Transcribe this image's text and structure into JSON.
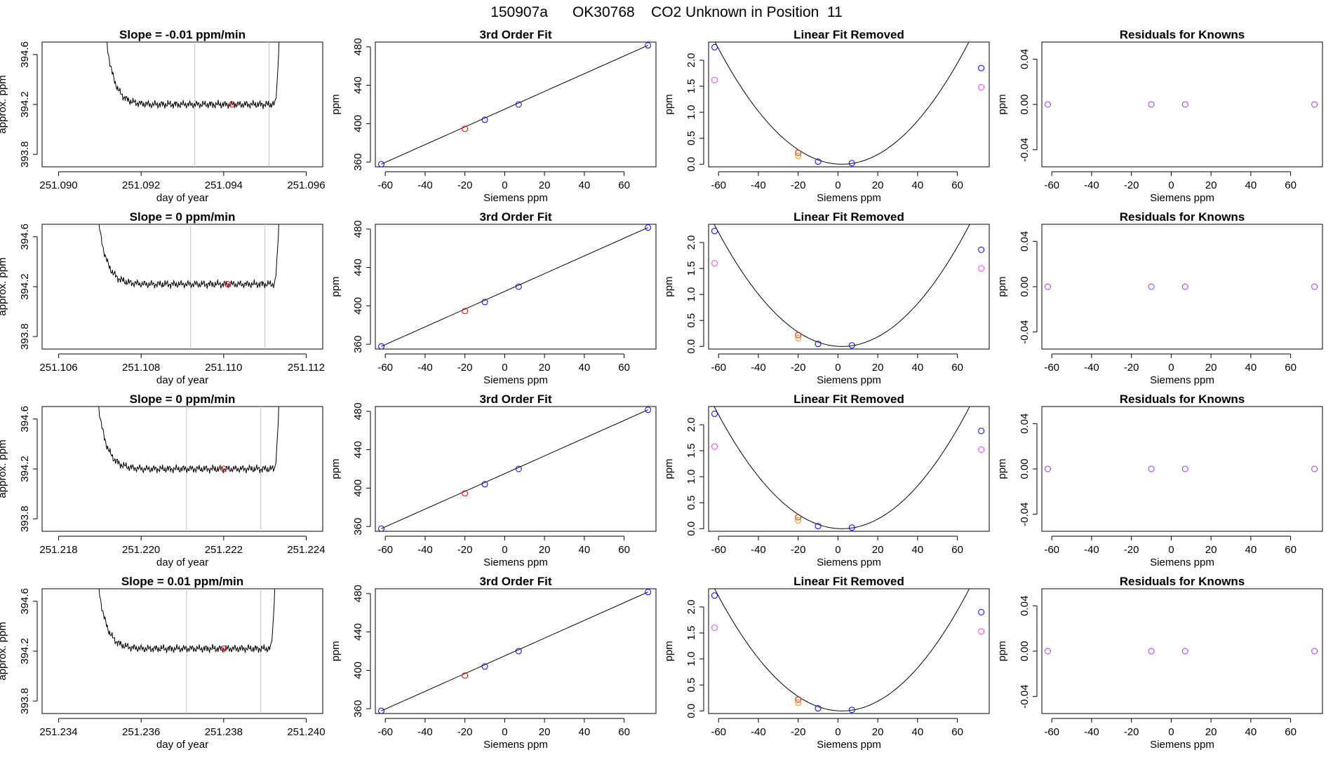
{
  "main_title": "150907a      OK30768    CO2 Unknown in Position  11",
  "colors": {
    "blue": "#0000ff",
    "red": "#ff0000",
    "orange": "#ff8c00",
    "magenta": "#ee44ee",
    "purple": "#9933ff",
    "gray": "#c0c0c0"
  },
  "chart_data": [
    {
      "type": "line",
      "row": 1,
      "title": "Slope =  -0.01  ppm/min",
      "xlabel": "day of year",
      "ylabel": "approx. ppm",
      "xlim": [
        251.0896,
        251.0964
      ],
      "ylim": [
        393.7,
        394.7
      ],
      "xticks": [
        251.09,
        251.092,
        251.094,
        251.096
      ],
      "xtick_labels": [
        "251.090",
        "251.092",
        "251.094",
        "251.096"
      ],
      "yticks": [
        393.8,
        394.2,
        394.6
      ],
      "ytick_labels": [
        "393.8",
        "394.2",
        "394.6"
      ],
      "x_start": 251.0911,
      "x_end": 251.0954,
      "trace_level": 394.2,
      "vlines": [
        251.0933,
        251.0951
      ],
      "marker": {
        "x": 251.0942,
        "y": 394.2,
        "color": "red"
      }
    },
    {
      "type": "line",
      "row": 1,
      "title": "3rd Order Fit",
      "xlabel": "Siemens ppm",
      "ylabel": "ppm",
      "xlim": [
        -65,
        76
      ],
      "ylim": [
        355,
        485
      ],
      "xticks": [
        -60,
        -40,
        -20,
        0,
        20,
        40,
        60
      ],
      "xtick_labels": [
        "-60",
        "-40",
        "-20",
        "0",
        "20",
        "40",
        "60"
      ],
      "yticks": [
        360,
        400,
        440,
        480
      ],
      "ytick_labels": [
        "360",
        "400",
        "440",
        "480"
      ],
      "curve": {
        "x": [
          -62,
          72
        ],
        "y": [
          357.8,
          481.6
        ]
      },
      "points": [
        {
          "x": -62,
          "y": 357.8,
          "color": "blue"
        },
        {
          "x": -10,
          "y": 404.0,
          "color": "blue"
        },
        {
          "x": 7,
          "y": 420.0,
          "color": "blue"
        },
        {
          "x": 72,
          "y": 481.6,
          "color": "blue"
        },
        {
          "x": -20,
          "y": 394.6,
          "color": "red"
        }
      ]
    },
    {
      "type": "scatter",
      "row": 1,
      "title": "Linear Fit Removed",
      "xlabel": "Siemens ppm",
      "ylabel": "ppm",
      "xlim": [
        -65,
        76
      ],
      "ylim": [
        -0.05,
        2.35
      ],
      "xticks": [
        -60,
        -40,
        -20,
        0,
        20,
        40,
        60
      ],
      "xtick_labels": [
        "-60",
        "-40",
        "-20",
        "0",
        "20",
        "40",
        "60"
      ],
      "yticks": [
        0.0,
        0.5,
        1.0,
        1.5,
        2.0
      ],
      "ytick_labels": [
        "0.0",
        "0.5",
        "1.0",
        "1.5",
        "2.0"
      ],
      "curve": {
        "quad": 0.000578,
        "vertex": 2
      },
      "points": [
        {
          "x": -62,
          "y": 2.25,
          "color": "blue"
        },
        {
          "x": -10,
          "y": 0.05,
          "color": "blue"
        },
        {
          "x": 7,
          "y": 0.02,
          "color": "blue"
        },
        {
          "x": 72,
          "y": 1.85,
          "color": "blue"
        },
        {
          "x": -62,
          "y": 1.62,
          "color": "magenta"
        },
        {
          "x": 72,
          "y": 1.48,
          "color": "magenta"
        },
        {
          "x": -20,
          "y": 0.22,
          "color": "red"
        },
        {
          "x": -20,
          "y": 0.16,
          "color": "orange"
        }
      ]
    },
    {
      "type": "scatter",
      "row": 1,
      "title": "Residuals for Knowns",
      "xlabel": "Siemens ppm",
      "ylabel": "ppm",
      "xlim": [
        -65,
        76
      ],
      "ylim": [
        -0.055,
        0.055
      ],
      "xticks": [
        -60,
        -40,
        -20,
        0,
        20,
        40,
        60
      ],
      "xtick_labels": [
        "-60",
        "-40",
        "-20",
        "0",
        "20",
        "40",
        "60"
      ],
      "yticks": [
        -0.04,
        0.0,
        0.04
      ],
      "ytick_labels": [
        "-0.04",
        "0.00",
        "0.04"
      ],
      "points": [
        {
          "x": -62,
          "y": 0.0,
          "color": "purple"
        },
        {
          "x": -10,
          "y": 0.0,
          "color": "purple"
        },
        {
          "x": 7,
          "y": 0.0,
          "color": "purple"
        },
        {
          "x": 72,
          "y": 0.0,
          "color": "purple"
        }
      ]
    },
    {
      "type": "line",
      "row": 2,
      "title": "Slope =  0  ppm/min",
      "xlabel": "day of year",
      "ylabel": "approx. ppm",
      "xlim": [
        251.1056,
        251.1124
      ],
      "ylim": [
        393.7,
        394.7
      ],
      "xticks": [
        251.106,
        251.108,
        251.11,
        251.112
      ],
      "xtick_labels": [
        "251.106",
        "251.108",
        "251.110",
        "251.112"
      ],
      "yticks": [
        393.8,
        394.2,
        394.6
      ],
      "ytick_labels": [
        "393.8",
        "394.2",
        "394.6"
      ],
      "x_start": 251.1069,
      "x_end": 251.1114,
      "trace_level": 394.22,
      "vlines": [
        251.1092,
        251.111
      ],
      "marker": {
        "x": 251.1101,
        "y": 394.22,
        "color": "red"
      }
    },
    {
      "type": "line",
      "row": 2,
      "title": "3rd Order Fit",
      "xlabel": "Siemens ppm",
      "ylabel": "ppm",
      "xlim": [
        -65,
        76
      ],
      "ylim": [
        355,
        485
      ],
      "xticks": [
        -60,
        -40,
        -20,
        0,
        20,
        40,
        60
      ],
      "xtick_labels": [
        "-60",
        "-40",
        "-20",
        "0",
        "20",
        "40",
        "60"
      ],
      "yticks": [
        360,
        400,
        440,
        480
      ],
      "ytick_labels": [
        "360",
        "400",
        "440",
        "480"
      ],
      "curve": {
        "x": [
          -62,
          72
        ],
        "y": [
          357.8,
          481.6
        ]
      },
      "points": [
        {
          "x": -62,
          "y": 357.8,
          "color": "blue"
        },
        {
          "x": -10,
          "y": 404.0,
          "color": "blue"
        },
        {
          "x": 7,
          "y": 420.0,
          "color": "blue"
        },
        {
          "x": 72,
          "y": 481.6,
          "color": "blue"
        },
        {
          "x": -20,
          "y": 394.6,
          "color": "red"
        }
      ]
    },
    {
      "type": "scatter",
      "row": 2,
      "title": "Linear Fit Removed",
      "xlabel": "Siemens ppm",
      "ylabel": "ppm",
      "xlim": [
        -65,
        76
      ],
      "ylim": [
        -0.05,
        2.35
      ],
      "xticks": [
        -60,
        -40,
        -20,
        0,
        20,
        40,
        60
      ],
      "xtick_labels": [
        "-60",
        "-40",
        "-20",
        "0",
        "20",
        "40",
        "60"
      ],
      "yticks": [
        0.0,
        0.5,
        1.0,
        1.5,
        2.0
      ],
      "ytick_labels": [
        "0.0",
        "0.5",
        "1.0",
        "1.5",
        "2.0"
      ],
      "curve": {
        "quad": 0.00057,
        "vertex": 2
      },
      "points": [
        {
          "x": -62,
          "y": 2.22,
          "color": "blue"
        },
        {
          "x": -10,
          "y": 0.05,
          "color": "blue"
        },
        {
          "x": 7,
          "y": 0.02,
          "color": "blue"
        },
        {
          "x": 72,
          "y": 1.86,
          "color": "blue"
        },
        {
          "x": -62,
          "y": 1.6,
          "color": "magenta"
        },
        {
          "x": 72,
          "y": 1.5,
          "color": "magenta"
        },
        {
          "x": -20,
          "y": 0.22,
          "color": "red"
        },
        {
          "x": -20,
          "y": 0.16,
          "color": "orange"
        }
      ]
    },
    {
      "type": "scatter",
      "row": 2,
      "title": "Residuals for Knowns",
      "xlabel": "Siemens ppm",
      "ylabel": "ppm",
      "xlim": [
        -65,
        76
      ],
      "ylim": [
        -0.055,
        0.055
      ],
      "xticks": [
        -60,
        -40,
        -20,
        0,
        20,
        40,
        60
      ],
      "xtick_labels": [
        "-60",
        "-40",
        "-20",
        "0",
        "20",
        "40",
        "60"
      ],
      "yticks": [
        -0.04,
        0.0,
        0.04
      ],
      "ytick_labels": [
        "-0.04",
        "0.00",
        "0.04"
      ],
      "points": [
        {
          "x": -62,
          "y": 0.0,
          "color": "purple"
        },
        {
          "x": -10,
          "y": 0.0,
          "color": "purple"
        },
        {
          "x": 7,
          "y": 0.0,
          "color": "purple"
        },
        {
          "x": 72,
          "y": 0.0,
          "color": "purple"
        }
      ]
    },
    {
      "type": "line",
      "row": 3,
      "title": "Slope =  0  ppm/min",
      "xlabel": "day of year",
      "ylabel": "approx. ppm",
      "xlim": [
        251.2176,
        251.2244
      ],
      "ylim": [
        393.7,
        394.7
      ],
      "xticks": [
        251.218,
        251.22,
        251.222,
        251.224
      ],
      "xtick_labels": [
        "251.218",
        "251.220",
        "251.222",
        "251.224"
      ],
      "yticks": [
        393.8,
        394.2,
        394.6
      ],
      "ytick_labels": [
        "393.8",
        "394.2",
        "394.6"
      ],
      "x_start": 251.2189,
      "x_end": 251.2234,
      "trace_level": 394.2,
      "vlines": [
        251.2211,
        251.2229
      ],
      "marker": {
        "x": 251.222,
        "y": 394.2,
        "color": "red"
      }
    },
    {
      "type": "line",
      "row": 3,
      "title": "3rd Order Fit",
      "xlabel": "Siemens ppm",
      "ylabel": "ppm",
      "xlim": [
        -65,
        76
      ],
      "ylim": [
        355,
        485
      ],
      "xticks": [
        -60,
        -40,
        -20,
        0,
        20,
        40,
        60
      ],
      "xtick_labels": [
        "-60",
        "-40",
        "-20",
        "0",
        "20",
        "40",
        "60"
      ],
      "yticks": [
        360,
        400,
        440,
        480
      ],
      "ytick_labels": [
        "360",
        "400",
        "440",
        "480"
      ],
      "curve": {
        "x": [
          -62,
          72
        ],
        "y": [
          357.8,
          481.6
        ]
      },
      "points": [
        {
          "x": -62,
          "y": 357.8,
          "color": "blue"
        },
        {
          "x": -10,
          "y": 404.0,
          "color": "blue"
        },
        {
          "x": 7,
          "y": 420.0,
          "color": "blue"
        },
        {
          "x": 72,
          "y": 481.6,
          "color": "blue"
        },
        {
          "x": -20,
          "y": 394.6,
          "color": "red"
        }
      ]
    },
    {
      "type": "scatter",
      "row": 3,
      "title": "Linear Fit Removed",
      "xlabel": "Siemens ppm",
      "ylabel": "ppm",
      "xlim": [
        -65,
        76
      ],
      "ylim": [
        -0.05,
        2.35
      ],
      "xticks": [
        -60,
        -40,
        -20,
        0,
        20,
        40,
        60
      ],
      "xtick_labels": [
        "-60",
        "-40",
        "-20",
        "0",
        "20",
        "40",
        "60"
      ],
      "yticks": [
        0.0,
        0.5,
        1.0,
        1.5,
        2.0
      ],
      "ytick_labels": [
        "0.0",
        "0.5",
        "1.0",
        "1.5",
        "2.0"
      ],
      "curve": {
        "quad": 0.00057,
        "vertex": 2
      },
      "points": [
        {
          "x": -62,
          "y": 2.21,
          "color": "blue"
        },
        {
          "x": -10,
          "y": 0.05,
          "color": "blue"
        },
        {
          "x": 7,
          "y": 0.02,
          "color": "blue"
        },
        {
          "x": 72,
          "y": 1.88,
          "color": "blue"
        },
        {
          "x": -62,
          "y": 1.58,
          "color": "magenta"
        },
        {
          "x": 72,
          "y": 1.52,
          "color": "magenta"
        },
        {
          "x": -20,
          "y": 0.22,
          "color": "red"
        },
        {
          "x": -20,
          "y": 0.16,
          "color": "orange"
        }
      ]
    },
    {
      "type": "scatter",
      "row": 3,
      "title": "Residuals for Knowns",
      "xlabel": "Siemens ppm",
      "ylabel": "ppm",
      "xlim": [
        -65,
        76
      ],
      "ylim": [
        -0.055,
        0.055
      ],
      "xticks": [
        -60,
        -40,
        -20,
        0,
        20,
        40,
        60
      ],
      "xtick_labels": [
        "-60",
        "-40",
        "-20",
        "0",
        "20",
        "40",
        "60"
      ],
      "yticks": [
        -0.04,
        0.0,
        0.04
      ],
      "ytick_labels": [
        "-0.04",
        "0.00",
        "0.04"
      ],
      "points": [
        {
          "x": -62,
          "y": 0.0,
          "color": "purple"
        },
        {
          "x": -10,
          "y": 0.0,
          "color": "purple"
        },
        {
          "x": 7,
          "y": 0.0,
          "color": "purple"
        },
        {
          "x": 72,
          "y": 0.0,
          "color": "purple"
        }
      ]
    },
    {
      "type": "line",
      "row": 4,
      "title": "Slope =  0.01  ppm/min",
      "xlabel": "day of year",
      "ylabel": "approx. ppm",
      "xlim": [
        251.2336,
        251.2404
      ],
      "ylim": [
        393.7,
        394.7
      ],
      "xticks": [
        251.234,
        251.236,
        251.238,
        251.24
      ],
      "xtick_labels": [
        "251.234",
        "251.236",
        "251.238",
        "251.240"
      ],
      "yticks": [
        393.8,
        394.2,
        394.6
      ],
      "ytick_labels": [
        "393.8",
        "394.2",
        "394.6"
      ],
      "x_start": 251.2349,
      "x_end": 251.2393,
      "trace_level": 394.22,
      "vlines": [
        251.2371,
        251.2389
      ],
      "marker": {
        "x": 251.238,
        "y": 394.22,
        "color": "red"
      }
    },
    {
      "type": "line",
      "row": 4,
      "title": "3rd Order Fit",
      "xlabel": "Siemens ppm",
      "ylabel": "ppm",
      "xlim": [
        -65,
        76
      ],
      "ylim": [
        355,
        485
      ],
      "xticks": [
        -60,
        -40,
        -20,
        0,
        20,
        40,
        60
      ],
      "xtick_labels": [
        "-60",
        "-40",
        "-20",
        "0",
        "20",
        "40",
        "60"
      ],
      "yticks": [
        360,
        400,
        440,
        480
      ],
      "ytick_labels": [
        "360",
        "400",
        "440",
        "480"
      ],
      "curve": {
        "x": [
          -62,
          72
        ],
        "y": [
          357.8,
          481.6
        ]
      },
      "points": [
        {
          "x": -62,
          "y": 357.8,
          "color": "blue"
        },
        {
          "x": -10,
          "y": 404.0,
          "color": "blue"
        },
        {
          "x": 7,
          "y": 420.0,
          "color": "blue"
        },
        {
          "x": 72,
          "y": 481.6,
          "color": "blue"
        },
        {
          "x": -20,
          "y": 394.6,
          "color": "red"
        }
      ]
    },
    {
      "type": "scatter",
      "row": 4,
      "title": "Linear Fit Removed",
      "xlabel": "Siemens ppm",
      "ylabel": "ppm",
      "xlim": [
        -65,
        76
      ],
      "ylim": [
        -0.05,
        2.35
      ],
      "xticks": [
        -60,
        -40,
        -20,
        0,
        20,
        40,
        60
      ],
      "xtick_labels": [
        "-60",
        "-40",
        "-20",
        "0",
        "20",
        "40",
        "60"
      ],
      "yticks": [
        0.0,
        0.5,
        1.0,
        1.5,
        2.0
      ],
      "ytick_labels": [
        "0.0",
        "0.5",
        "1.0",
        "1.5",
        "2.0"
      ],
      "curve": {
        "quad": 0.000574,
        "vertex": 2
      },
      "points": [
        {
          "x": -62,
          "y": 2.22,
          "color": "blue"
        },
        {
          "x": -10,
          "y": 0.05,
          "color": "blue"
        },
        {
          "x": 7,
          "y": 0.02,
          "color": "blue"
        },
        {
          "x": 72,
          "y": 1.9,
          "color": "blue"
        },
        {
          "x": -62,
          "y": 1.6,
          "color": "magenta"
        },
        {
          "x": 72,
          "y": 1.53,
          "color": "magenta"
        },
        {
          "x": -20,
          "y": 0.22,
          "color": "red"
        },
        {
          "x": -20,
          "y": 0.16,
          "color": "orange"
        }
      ]
    },
    {
      "type": "scatter",
      "row": 4,
      "title": "Residuals for Knowns",
      "xlabel": "Siemens ppm",
      "ylabel": "ppm",
      "xlim": [
        -65,
        76
      ],
      "ylim": [
        -0.055,
        0.055
      ],
      "xticks": [
        -60,
        -40,
        -20,
        0,
        20,
        40,
        60
      ],
      "xtick_labels": [
        "-60",
        "-40",
        "-20",
        "0",
        "20",
        "40",
        "60"
      ],
      "yticks": [
        -0.04,
        0.0,
        0.04
      ],
      "ytick_labels": [
        "-0.04",
        "0.00",
        "0.04"
      ],
      "points": [
        {
          "x": -62,
          "y": 0.0,
          "color": "purple"
        },
        {
          "x": -10,
          "y": 0.0,
          "color": "purple"
        },
        {
          "x": 7,
          "y": 0.0,
          "color": "purple"
        },
        {
          "x": 72,
          "y": 0.0,
          "color": "purple"
        }
      ]
    }
  ]
}
